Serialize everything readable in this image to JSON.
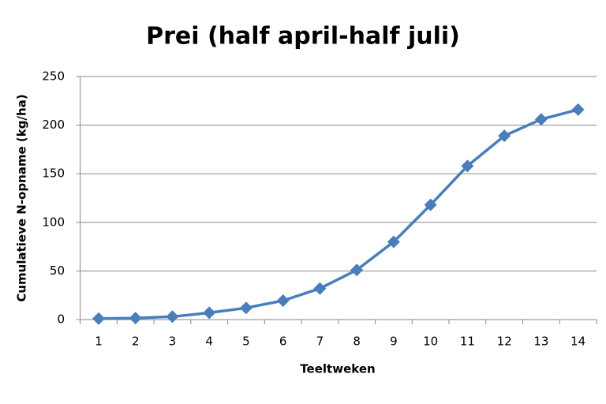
{
  "chart_data": {
    "type": "line",
    "title": "Prei (half april-half juli)",
    "x_label": "Teeltweken",
    "y_label": "Cumulatieve N-opname (kg/ha)",
    "categories": [
      "1",
      "2",
      "3",
      "4",
      "5",
      "6",
      "7",
      "8",
      "9",
      "10",
      "11",
      "12",
      "13",
      "14"
    ],
    "series": [
      {
        "name": "Prei",
        "color": "#4a7ebb",
        "values": [
          1,
          1.5,
          3,
          7,
          12,
          19.5,
          32,
          51,
          80,
          118,
          158,
          189,
          206,
          216
        ]
      }
    ],
    "ylim": [
      0,
      250
    ],
    "yticks": [
      0,
      50,
      100,
      150,
      200,
      250
    ],
    "grid": true
  }
}
